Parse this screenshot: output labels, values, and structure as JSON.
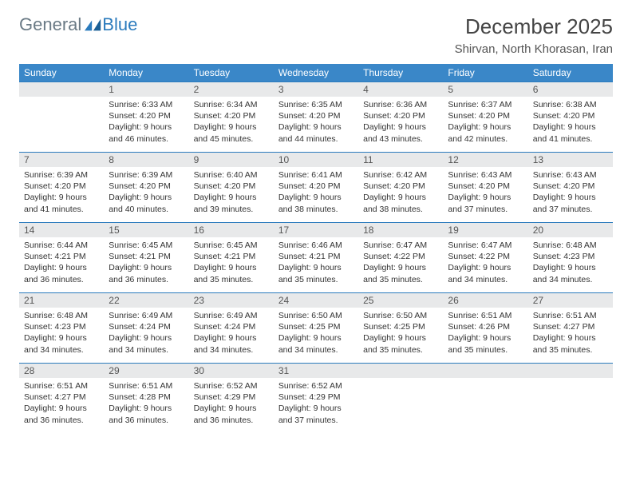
{
  "brand": {
    "part1": "General",
    "part2": "Blue"
  },
  "title": "December 2025",
  "location": "Shirvan, North Khorasan, Iran",
  "colors": {
    "header_bg": "#3a87c8",
    "header_text": "#ffffff",
    "daynum_bg": "#e8e9ea",
    "daynum_border": "#2b7bbd",
    "text": "#333333",
    "brand_gray": "#6a7a85",
    "brand_blue": "#2b7bbd"
  },
  "weekdays": [
    "Sunday",
    "Monday",
    "Tuesday",
    "Wednesday",
    "Thursday",
    "Friday",
    "Saturday"
  ],
  "start_offset": 1,
  "days": [
    {
      "n": 1,
      "sunrise": "6:33 AM",
      "sunset": "4:20 PM",
      "daylight": "9 hours and 46 minutes."
    },
    {
      "n": 2,
      "sunrise": "6:34 AM",
      "sunset": "4:20 PM",
      "daylight": "9 hours and 45 minutes."
    },
    {
      "n": 3,
      "sunrise": "6:35 AM",
      "sunset": "4:20 PM",
      "daylight": "9 hours and 44 minutes."
    },
    {
      "n": 4,
      "sunrise": "6:36 AM",
      "sunset": "4:20 PM",
      "daylight": "9 hours and 43 minutes."
    },
    {
      "n": 5,
      "sunrise": "6:37 AM",
      "sunset": "4:20 PM",
      "daylight": "9 hours and 42 minutes."
    },
    {
      "n": 6,
      "sunrise": "6:38 AM",
      "sunset": "4:20 PM",
      "daylight": "9 hours and 41 minutes."
    },
    {
      "n": 7,
      "sunrise": "6:39 AM",
      "sunset": "4:20 PM",
      "daylight": "9 hours and 41 minutes."
    },
    {
      "n": 8,
      "sunrise": "6:39 AM",
      "sunset": "4:20 PM",
      "daylight": "9 hours and 40 minutes."
    },
    {
      "n": 9,
      "sunrise": "6:40 AM",
      "sunset": "4:20 PM",
      "daylight": "9 hours and 39 minutes."
    },
    {
      "n": 10,
      "sunrise": "6:41 AM",
      "sunset": "4:20 PM",
      "daylight": "9 hours and 38 minutes."
    },
    {
      "n": 11,
      "sunrise": "6:42 AM",
      "sunset": "4:20 PM",
      "daylight": "9 hours and 38 minutes."
    },
    {
      "n": 12,
      "sunrise": "6:43 AM",
      "sunset": "4:20 PM",
      "daylight": "9 hours and 37 minutes."
    },
    {
      "n": 13,
      "sunrise": "6:43 AM",
      "sunset": "4:20 PM",
      "daylight": "9 hours and 37 minutes."
    },
    {
      "n": 14,
      "sunrise": "6:44 AM",
      "sunset": "4:21 PM",
      "daylight": "9 hours and 36 minutes."
    },
    {
      "n": 15,
      "sunrise": "6:45 AM",
      "sunset": "4:21 PM",
      "daylight": "9 hours and 36 minutes."
    },
    {
      "n": 16,
      "sunrise": "6:45 AM",
      "sunset": "4:21 PM",
      "daylight": "9 hours and 35 minutes."
    },
    {
      "n": 17,
      "sunrise": "6:46 AM",
      "sunset": "4:21 PM",
      "daylight": "9 hours and 35 minutes."
    },
    {
      "n": 18,
      "sunrise": "6:47 AM",
      "sunset": "4:22 PM",
      "daylight": "9 hours and 35 minutes."
    },
    {
      "n": 19,
      "sunrise": "6:47 AM",
      "sunset": "4:22 PM",
      "daylight": "9 hours and 34 minutes."
    },
    {
      "n": 20,
      "sunrise": "6:48 AM",
      "sunset": "4:23 PM",
      "daylight": "9 hours and 34 minutes."
    },
    {
      "n": 21,
      "sunrise": "6:48 AM",
      "sunset": "4:23 PM",
      "daylight": "9 hours and 34 minutes."
    },
    {
      "n": 22,
      "sunrise": "6:49 AM",
      "sunset": "4:24 PM",
      "daylight": "9 hours and 34 minutes."
    },
    {
      "n": 23,
      "sunrise": "6:49 AM",
      "sunset": "4:24 PM",
      "daylight": "9 hours and 34 minutes."
    },
    {
      "n": 24,
      "sunrise": "6:50 AM",
      "sunset": "4:25 PM",
      "daylight": "9 hours and 34 minutes."
    },
    {
      "n": 25,
      "sunrise": "6:50 AM",
      "sunset": "4:25 PM",
      "daylight": "9 hours and 35 minutes."
    },
    {
      "n": 26,
      "sunrise": "6:51 AM",
      "sunset": "4:26 PM",
      "daylight": "9 hours and 35 minutes."
    },
    {
      "n": 27,
      "sunrise": "6:51 AM",
      "sunset": "4:27 PM",
      "daylight": "9 hours and 35 minutes."
    },
    {
      "n": 28,
      "sunrise": "6:51 AM",
      "sunset": "4:27 PM",
      "daylight": "9 hours and 36 minutes."
    },
    {
      "n": 29,
      "sunrise": "6:51 AM",
      "sunset": "4:28 PM",
      "daylight": "9 hours and 36 minutes."
    },
    {
      "n": 30,
      "sunrise": "6:52 AM",
      "sunset": "4:29 PM",
      "daylight": "9 hours and 36 minutes."
    },
    {
      "n": 31,
      "sunrise": "6:52 AM",
      "sunset": "4:29 PM",
      "daylight": "9 hours and 37 minutes."
    }
  ],
  "labels": {
    "sunrise": "Sunrise:",
    "sunset": "Sunset:",
    "daylight": "Daylight:"
  }
}
